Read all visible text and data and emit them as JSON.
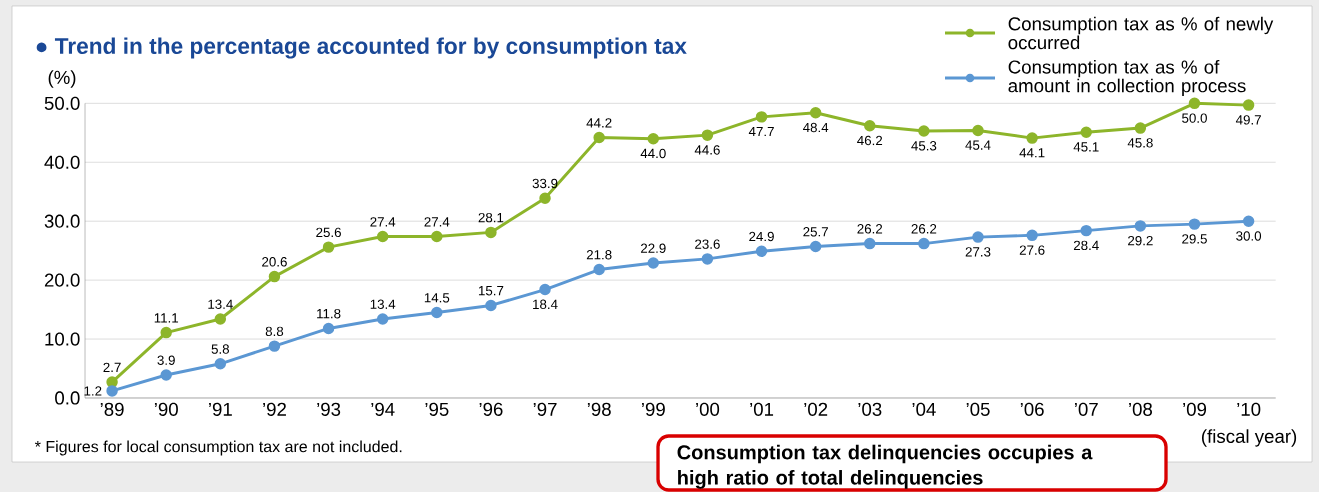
{
  "chart_data": {
    "type": "line",
    "title": "● Trend in the percentage accounted for by consumption tax",
    "ylabel": "(%)",
    "xlabel": "(fiscal year)",
    "categories": [
      "’89",
      "’90",
      "’91",
      "’92",
      "’93",
      "’94",
      "’95",
      "’96",
      "’97",
      "’98",
      "’99",
      "’00",
      "’01",
      "’02",
      "’03",
      "’04",
      "’05",
      "’06",
      "’07",
      "’08",
      "’09",
      "’10"
    ],
    "series": [
      {
        "name": "Consumption tax as % of newly occurred",
        "color": "#8db52a",
        "values": [
          2.7,
          11.1,
          13.4,
          20.6,
          25.6,
          27.4,
          27.4,
          28.1,
          33.9,
          44.2,
          44.0,
          44.6,
          47.7,
          48.4,
          46.2,
          45.3,
          45.4,
          44.1,
          45.1,
          45.8,
          50.0,
          49.7
        ],
        "value_labels": [
          "2.7",
          "11.1",
          "13.4",
          "20.6",
          "25.6",
          "27.4",
          "27.4",
          "28.1",
          "33.9",
          "44.2",
          "44.0",
          "44.6",
          "47.7",
          "48.4",
          "46.2",
          "45.3",
          "45.4",
          "44.1",
          "45.1",
          "45.8",
          "50.0",
          "49.7"
        ]
      },
      {
        "name": "Consumption tax as % of amount in collection process",
        "color": "#5b97d3",
        "values": [
          1.2,
          3.9,
          5.8,
          8.8,
          11.8,
          13.4,
          14.5,
          15.7,
          18.4,
          21.8,
          22.9,
          23.6,
          24.9,
          25.7,
          26.2,
          26.2,
          27.3,
          27.6,
          28.4,
          29.2,
          29.5,
          30.0
        ],
        "value_labels": [
          "1.2",
          "3.9",
          "5.8",
          "8.8",
          "11.8",
          "13.4",
          "14.5",
          "15.7",
          "18.4",
          "21.8",
          "22.9",
          "23.6",
          "24.9",
          "25.7",
          "26.2",
          "26.2",
          "27.3",
          "27.6",
          "28.4",
          "29.2",
          "29.5",
          "30.0"
        ]
      }
    ],
    "ylim": [
      0,
      50
    ],
    "yticks": [
      {
        "value": 0,
        "label": "0.0"
      },
      {
        "value": 10,
        "label": "10.0"
      },
      {
        "value": 20,
        "label": "20.0"
      },
      {
        "value": 30,
        "label": "30.0"
      },
      {
        "value": 40,
        "label": "40.0"
      },
      {
        "value": 50,
        "label": "50.0"
      }
    ],
    "grid": "y",
    "legend": "top right",
    "marker": "circle",
    "line_style": "solid",
    "annotations": [
      "* Figures for local consumption tax are not included.",
      "Consumption tax delinquencies occupies a high ratio of total delinquencies"
    ]
  }
}
